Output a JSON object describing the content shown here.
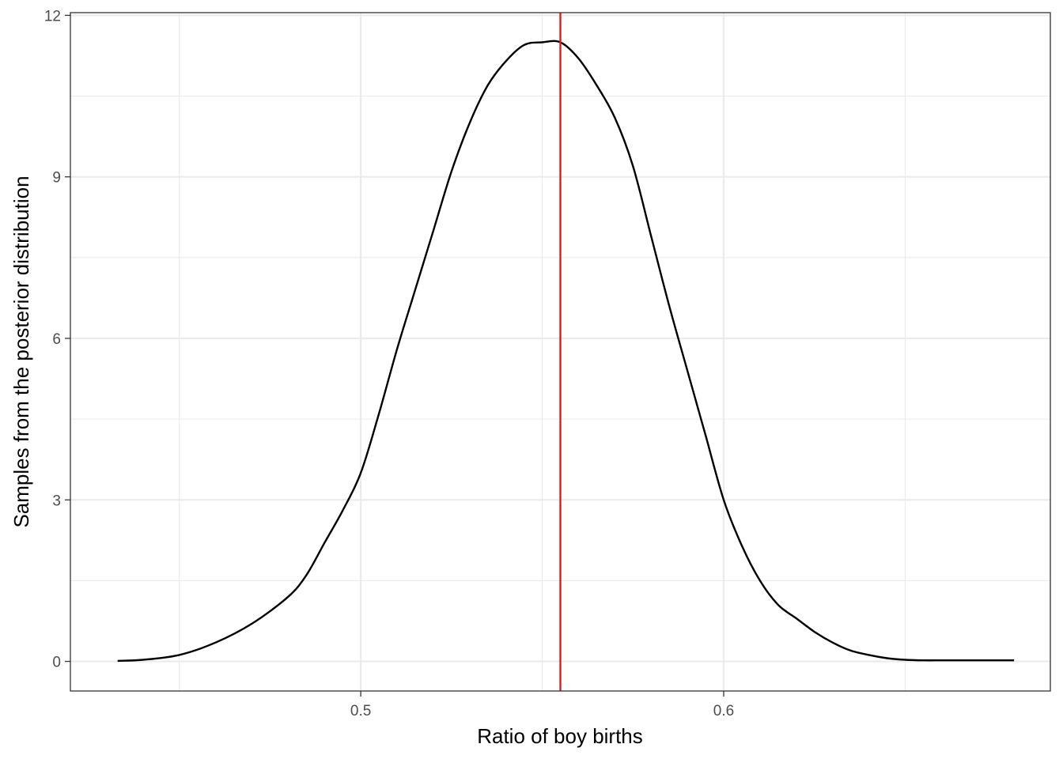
{
  "chart_data": {
    "type": "line",
    "title": "",
    "xlabel": "Ratio of boy births",
    "ylabel": "Samples from the posterior distribution",
    "xlim": [
      0.42,
      0.69
    ],
    "ylim": [
      -0.55,
      12.05
    ],
    "x_ticks": [
      0.5,
      0.6
    ],
    "x_tick_labels": [
      "0.5",
      "0.6"
    ],
    "x_minor_ticks": [
      0.45,
      0.55,
      0.65
    ],
    "y_ticks": [
      0,
      3,
      6,
      9,
      12
    ],
    "y_tick_labels": [
      "0",
      "3",
      "6",
      "9",
      "12"
    ],
    "y_minor_ticks": [
      1.5,
      4.5,
      7.5,
      10.5
    ],
    "grid": true,
    "legend": "none",
    "colors": {
      "density": "#000000",
      "reference_line": "#e41a1c",
      "grid": "#ebebeb",
      "panel_border": "#333333"
    },
    "reference_line": {
      "x": 0.555
    },
    "series": [
      {
        "x": [
          0.433,
          0.44,
          0.45,
          0.46,
          0.47,
          0.48,
          0.485,
          0.49,
          0.495,
          0.5,
          0.505,
          0.51,
          0.515,
          0.52,
          0.525,
          0.53,
          0.535,
          0.54,
          0.545,
          0.55,
          0.555,
          0.56,
          0.565,
          0.57,
          0.575,
          0.58,
          0.585,
          0.59,
          0.595,
          0.6,
          0.605,
          0.61,
          0.615,
          0.62,
          0.625,
          0.63,
          0.635,
          0.64,
          0.645,
          0.65,
          0.655,
          0.66,
          0.665,
          0.67,
          0.675,
          0.68
        ],
        "y": [
          0.01,
          0.03,
          0.12,
          0.35,
          0.7,
          1.2,
          1.6,
          2.2,
          2.8,
          3.5,
          4.6,
          5.8,
          6.9,
          8.0,
          9.1,
          10.0,
          10.7,
          11.15,
          11.45,
          11.5,
          11.5,
          11.2,
          10.7,
          10.1,
          9.2,
          7.9,
          6.6,
          5.4,
          4.2,
          3.0,
          2.15,
          1.5,
          1.05,
          0.8,
          0.55,
          0.35,
          0.2,
          0.12,
          0.06,
          0.03,
          0.02,
          0.02,
          0.02,
          0.02,
          0.02,
          0.02
        ]
      }
    ]
  }
}
